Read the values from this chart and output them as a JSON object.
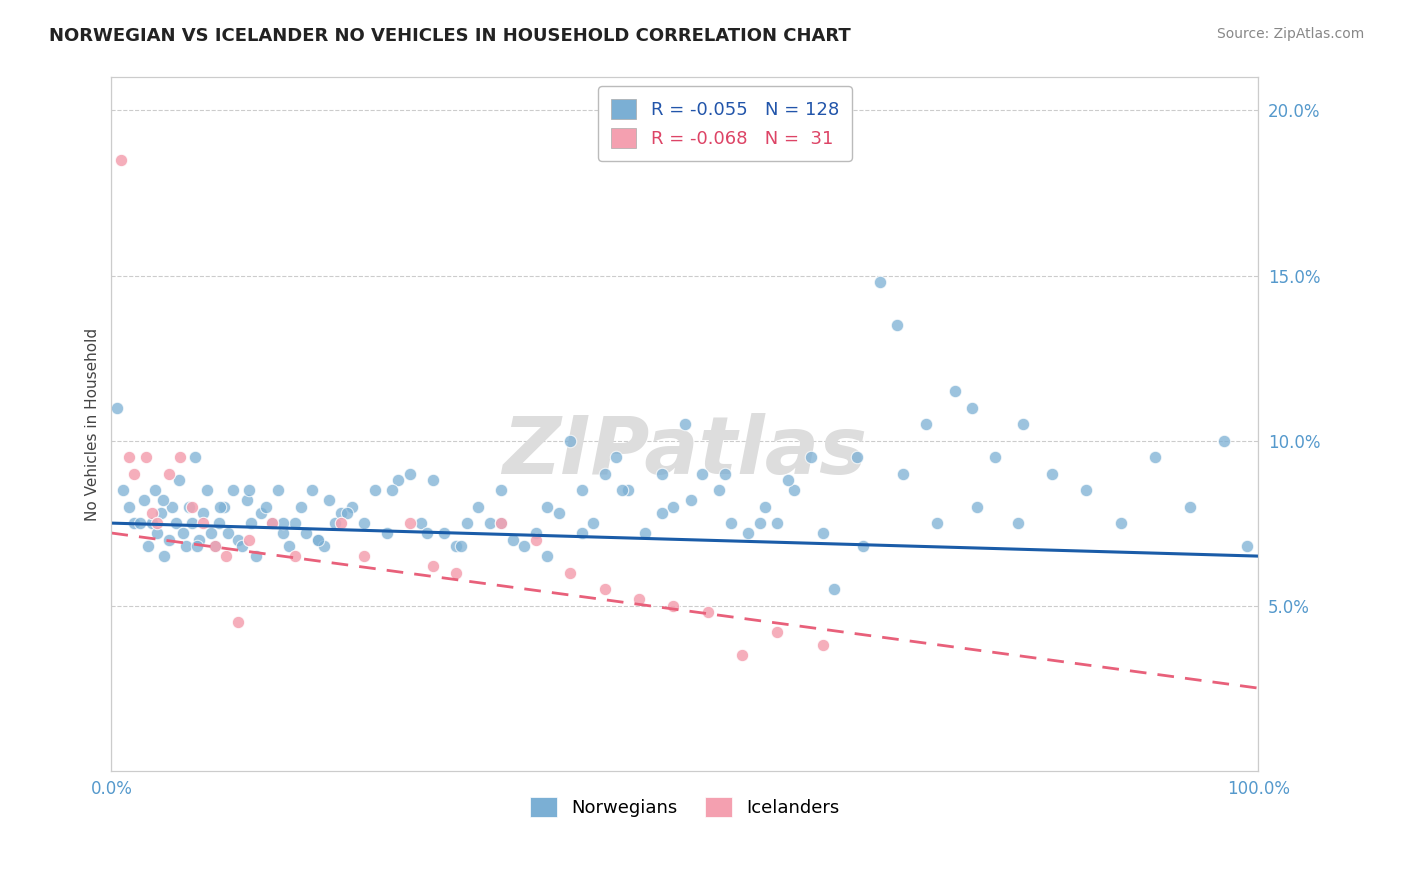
{
  "title": "NORWEGIAN VS ICELANDER NO VEHICLES IN HOUSEHOLD CORRELATION CHART",
  "source": "Source: ZipAtlas.com",
  "ylabel": "No Vehicles in Household",
  "xlim": [
    0,
    100
  ],
  "ylim": [
    0,
    21
  ],
  "yticks": [
    5,
    10,
    15,
    20
  ],
  "ytick_labels": [
    "5.0%",
    "10.0%",
    "15.0%",
    "20.0%"
  ],
  "xticks": [
    0,
    20,
    40,
    60,
    80,
    100
  ],
  "xtick_labels": [
    "0.0%",
    "",
    "",
    "",
    "",
    "100.0%"
  ],
  "legend_r1": "-0.055",
  "legend_n1": "128",
  "legend_r2": "-0.068",
  "legend_n2": "31",
  "legend_label1": "Norwegians",
  "legend_label2": "Icelanders",
  "norwegian_color": "#7BAFD4",
  "icelander_color": "#F4A0B0",
  "trend_norwegian_color": "#1A5CA8",
  "trend_icelander_color": "#E8607A",
  "watermark": "ZIPatlas",
  "watermark_color": "#DDDDDD",
  "background_color": "#FFFFFF",
  "grid_color": "#CCCCCC",
  "axis_label_color": "#5599CC",
  "norwegian_x": [
    1.5,
    2.0,
    2.8,
    3.2,
    3.5,
    3.8,
    4.0,
    4.3,
    4.6,
    5.0,
    5.3,
    5.6,
    5.9,
    6.2,
    6.5,
    6.8,
    7.0,
    7.3,
    7.6,
    8.0,
    8.3,
    8.7,
    9.0,
    9.4,
    9.8,
    10.2,
    10.6,
    11.0,
    11.4,
    11.8,
    12.2,
    12.6,
    13.0,
    13.5,
    14.0,
    14.5,
    15.0,
    15.5,
    16.0,
    16.5,
    17.0,
    17.5,
    18.0,
    18.5,
    19.0,
    19.5,
    20.0,
    21.0,
    22.0,
    23.0,
    24.0,
    25.0,
    26.0,
    27.0,
    28.0,
    29.0,
    30.0,
    31.0,
    32.0,
    33.0,
    34.0,
    35.0,
    36.0,
    37.0,
    38.0,
    39.0,
    40.0,
    41.0,
    42.0,
    43.0,
    44.0,
    45.0,
    46.5,
    48.0,
    49.0,
    50.0,
    51.5,
    53.0,
    54.0,
    55.5,
    57.0,
    58.0,
    59.5,
    61.0,
    63.0,
    65.0,
    67.0,
    69.0,
    71.0,
    73.5,
    75.0,
    77.0,
    79.5,
    82.0,
    85.0,
    88.0,
    91.0,
    94.0,
    97.0,
    99.0,
    0.5,
    1.0,
    2.5,
    4.5,
    7.5,
    9.5,
    12.0,
    15.0,
    18.0,
    20.5,
    24.5,
    27.5,
    30.5,
    34.0,
    38.0,
    41.0,
    44.5,
    48.0,
    50.5,
    53.5,
    56.5,
    59.0,
    62.0,
    65.5,
    68.5,
    72.0,
    75.5,
    79.0
  ],
  "norwegian_y": [
    8.0,
    7.5,
    8.2,
    6.8,
    7.5,
    8.5,
    7.2,
    7.8,
    6.5,
    7.0,
    8.0,
    7.5,
    8.8,
    7.2,
    6.8,
    8.0,
    7.5,
    9.5,
    7.0,
    7.8,
    8.5,
    7.2,
    6.8,
    7.5,
    8.0,
    7.2,
    8.5,
    7.0,
    6.8,
    8.2,
    7.5,
    6.5,
    7.8,
    8.0,
    7.5,
    8.5,
    7.2,
    6.8,
    7.5,
    8.0,
    7.2,
    8.5,
    7.0,
    6.8,
    8.2,
    7.5,
    7.8,
    8.0,
    7.5,
    8.5,
    7.2,
    8.8,
    9.0,
    7.5,
    8.8,
    7.2,
    6.8,
    7.5,
    8.0,
    7.5,
    8.5,
    7.0,
    6.8,
    7.2,
    6.5,
    7.8,
    10.0,
    8.5,
    7.5,
    9.0,
    9.5,
    8.5,
    7.2,
    9.0,
    8.0,
    10.5,
    9.0,
    8.5,
    7.5,
    7.2,
    8.0,
    7.5,
    8.5,
    9.5,
    5.5,
    9.5,
    14.8,
    9.0,
    10.5,
    11.5,
    11.0,
    9.5,
    10.5,
    9.0,
    8.5,
    7.5,
    9.5,
    8.0,
    10.0,
    6.8,
    11.0,
    8.5,
    7.5,
    8.2,
    6.8,
    8.0,
    8.5,
    7.5,
    7.0,
    7.8,
    8.5,
    7.2,
    6.8,
    7.5,
    8.0,
    7.2,
    8.5,
    7.8,
    8.2,
    9.0,
    7.5,
    8.8,
    7.2,
    6.8,
    13.5,
    7.5,
    8.0,
    7.5
  ],
  "icelander_x": [
    0.8,
    1.5,
    2.0,
    3.0,
    3.5,
    4.0,
    5.0,
    6.0,
    7.0,
    8.0,
    9.0,
    10.0,
    11.0,
    12.0,
    14.0,
    16.0,
    20.0,
    22.0,
    26.0,
    28.0,
    30.0,
    34.0,
    37.0,
    40.0,
    43.0,
    46.0,
    49.0,
    52.0,
    55.0,
    58.0,
    62.0
  ],
  "icelander_y": [
    18.5,
    9.5,
    9.0,
    9.5,
    7.8,
    7.5,
    9.0,
    9.5,
    8.0,
    7.5,
    6.8,
    6.5,
    4.5,
    7.0,
    7.5,
    6.5,
    7.5,
    6.5,
    7.5,
    6.2,
    6.0,
    7.5,
    7.0,
    6.0,
    5.5,
    5.2,
    5.0,
    4.8,
    3.5,
    4.2,
    3.8
  ],
  "trend_norwegian": [
    0,
    7.5,
    100,
    6.5
  ],
  "trend_icelander": [
    0,
    7.2,
    100,
    2.5
  ]
}
